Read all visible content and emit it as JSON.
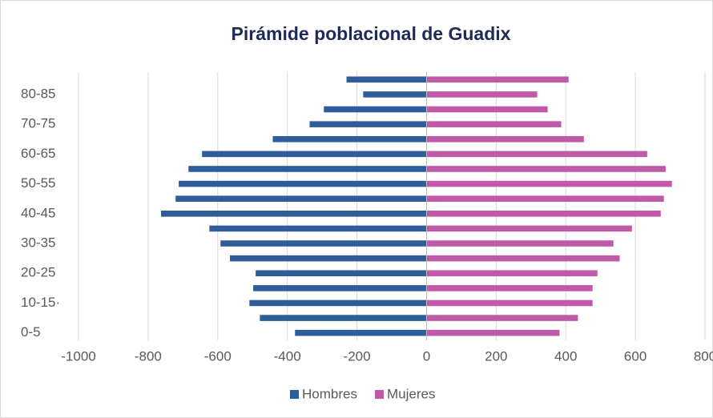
{
  "chart_data": {
    "type": "bar",
    "orientation": "horizontal",
    "stacked": true,
    "title": "Pirámide poblacional de Guadix",
    "categories": [
      "0-5",
      null,
      "10-15·",
      null,
      "20-25",
      null,
      "30-35",
      null,
      "40-45",
      null,
      "50-55",
      null,
      "60-65",
      null,
      "70-75",
      null,
      "80-85",
      null
    ],
    "series": [
      {
        "name": "Hombres",
        "color": "#2f5d9b",
        "values": [
          -378,
          -479,
          -509,
          -498,
          -491,
          -565,
          -592,
          -624,
          -763,
          -721,
          -712,
          -684,
          -645,
          -442,
          -336,
          -295,
          -182,
          -230
        ]
      },
      {
        "name": "Mujeres",
        "color": "#c05aa8",
        "values": [
          382,
          435,
          477,
          477,
          491,
          555,
          537,
          590,
          673,
          682,
          705,
          687,
          634,
          452,
          387,
          348,
          318,
          408
        ]
      }
    ],
    "xlim": [
      -1000,
      800
    ],
    "xticks": [
      -1000,
      -800,
      -600,
      -400,
      -200,
      0,
      200,
      400,
      600,
      800
    ],
    "grid": true,
    "legend": "bottom"
  }
}
